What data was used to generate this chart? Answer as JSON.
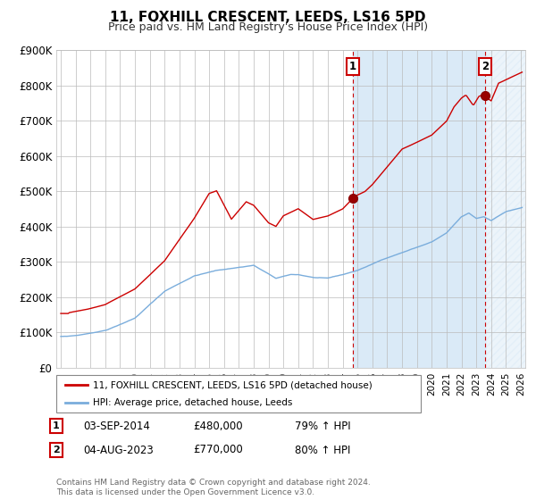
{
  "title": "11, FOXHILL CRESCENT, LEEDS, LS16 5PD",
  "subtitle": "Price paid vs. HM Land Registry's House Price Index (HPI)",
  "ylim": [
    0,
    900000
  ],
  "yticks": [
    0,
    100000,
    200000,
    300000,
    400000,
    500000,
    600000,
    700000,
    800000,
    900000
  ],
  "ytick_labels": [
    "£0",
    "£100K",
    "£200K",
    "£300K",
    "£400K",
    "£500K",
    "£600K",
    "£700K",
    "£800K",
    "£900K"
  ],
  "hpi_color": "#7aaddc",
  "price_color": "#cc0000",
  "background_color": "#ffffff",
  "plot_bg_color": "#ffffff",
  "shaded_bg_color": "#daeaf7",
  "grid_color": "#bbbbbb",
  "legend_line1": "11, FOXHILL CRESCENT, LEEDS, LS16 5PD (detached house)",
  "legend_line2": "HPI: Average price, detached house, Leeds",
  "annotation1_date": "03-SEP-2014",
  "annotation1_price": "£480,000",
  "annotation1_hpi": "79% ↑ HPI",
  "annotation2_date": "04-AUG-2023",
  "annotation2_price": "£770,000",
  "annotation2_hpi": "80% ↑ HPI",
  "sale1_year": 2014.67,
  "sale1_price": 480000,
  "sale2_year": 2023.58,
  "sale2_price": 770000,
  "footer": "Contains HM Land Registry data © Crown copyright and database right 2024.\nThis data is licensed under the Open Government Licence v3.0.",
  "xstart": 1995,
  "xend": 2026
}
